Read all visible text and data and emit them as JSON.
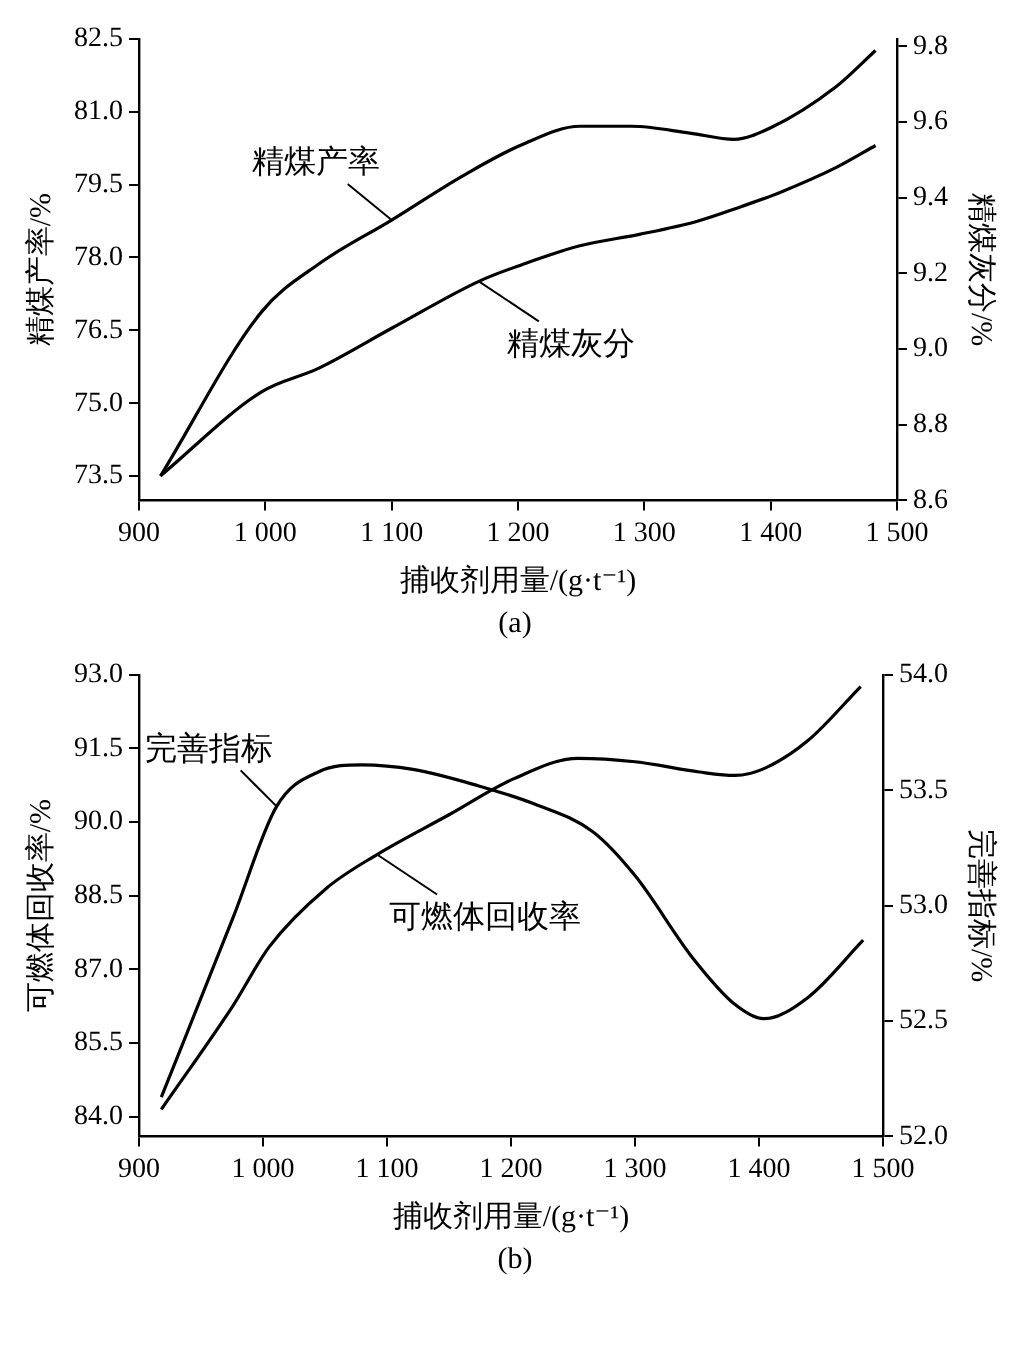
{
  "chart_data": [
    {
      "type": "line",
      "xlabel": "捕收剂用量/(g·t⁻¹)",
      "ylabel": "精煤产率/%",
      "y2label": "精煤灰分/%",
      "annotations": [
        "(a)"
      ],
      "xlim": [
        900,
        1500
      ],
      "xticks": [
        900,
        {
          "value": 1000,
          "label": "1 000"
        },
        {
          "value": 1100,
          "label": "1 100"
        },
        {
          "value": 1200,
          "label": "1 200"
        },
        {
          "value": 1300,
          "label": "1 300"
        },
        {
          "value": 1400,
          "label": "1 400"
        },
        {
          "value": 1500,
          "label": "1 500"
        }
      ],
      "ylim": [
        73,
        82.5
      ],
      "yticks": [
        73.5,
        {
          "value": 75,
          "label": "75.0"
        },
        76.5,
        {
          "value": 78,
          "label": "78.0"
        },
        79.5,
        {
          "value": 81,
          "label": "81.0"
        },
        82.5
      ],
      "y2lim": [
        8.6,
        9.82
      ],
      "y2ticks": [
        8.6,
        8.8,
        {
          "value": 9,
          "label": "9.0"
        },
        9.2,
        9.4,
        9.6,
        9.8
      ],
      "series": [
        {
          "name": "精煤产率",
          "color": "#000000",
          "axis": "y",
          "x": [
            917,
            997,
            1042,
            1100,
            1157,
            1203,
            1249,
            1290,
            1336,
            1371,
            1400,
            1452,
            1483
          ],
          "values": [
            73.5,
            76.88,
            77.86,
            78.77,
            79.69,
            80.32,
            80.7,
            80.7,
            80.56,
            80.43,
            80.67,
            81.52,
            82.26
          ]
        },
        {
          "name": "精煤灰分",
          "color": "#000000",
          "axis": "y2",
          "x": [
            917,
            997,
            1042,
            1100,
            1169,
            1203,
            1249,
            1296,
            1342,
            1377,
            1406,
            1452,
            1483
          ],
          "values": [
            8.665,
            8.887,
            8.949,
            9.055,
            9.179,
            9.223,
            9.273,
            9.303,
            9.338,
            9.377,
            9.412,
            9.48,
            9.538
          ]
        }
      ]
    },
    {
      "type": "line",
      "xlabel": "捕收剂用量/(g·t⁻¹)",
      "ylabel": "可燃体回收率/%",
      "y2label": "完善指标/%",
      "annotations": [
        "(b)"
      ],
      "xlim": [
        900,
        1500
      ],
      "xticks": [
        900,
        {
          "value": 1000,
          "label": "1 000"
        },
        {
          "value": 1100,
          "label": "1 100"
        },
        {
          "value": 1200,
          "label": "1 200"
        },
        {
          "value": 1300,
          "label": "1 300"
        },
        {
          "value": 1400,
          "label": "1 400"
        },
        {
          "value": 1500,
          "label": "1 500"
        }
      ],
      "ylim": [
        83.6,
        93
      ],
      "yticks": [
        {
          "value": 84,
          "label": "84.0"
        },
        85.5,
        {
          "value": 87,
          "label": "87.0"
        },
        88.5,
        {
          "value": 90,
          "label": "90.0"
        },
        91.5,
        {
          "value": 93,
          "label": "93.0"
        }
      ],
      "y2lim": [
        52,
        54
      ],
      "y2ticks": [
        {
          "value": 52,
          "label": "52.0"
        },
        52.5,
        {
          "value": 53,
          "label": "53.0"
        },
        53.5,
        {
          "value": 54,
          "label": "54.0"
        }
      ],
      "series": [
        {
          "name": "可燃体回收率",
          "color": "#000000",
          "axis": "y",
          "x": [
            918,
            976,
            1005,
            1051,
            1092,
            1150,
            1202,
            1254,
            1300,
            1352,
            1381,
            1404,
            1439,
            1482
          ],
          "values": [
            84.15,
            86.27,
            87.46,
            88.65,
            89.34,
            90.15,
            90.88,
            91.3,
            91.23,
            91.02,
            90.95,
            91.09,
            91.65,
            92.76
          ]
        },
        {
          "name": "完善指标",
          "color": "#000000",
          "axis": "y2",
          "x": [
            918,
            976,
            1011,
            1045,
            1080,
            1121,
            1173,
            1219,
            1266,
            1300,
            1347,
            1381,
            1404,
            1439,
            1484
          ],
          "values": [
            52.17,
            52.95,
            53.43,
            53.58,
            53.61,
            53.59,
            53.52,
            53.44,
            53.32,
            53.13,
            52.77,
            52.57,
            52.51,
            52.6,
            52.85
          ]
        }
      ]
    }
  ]
}
